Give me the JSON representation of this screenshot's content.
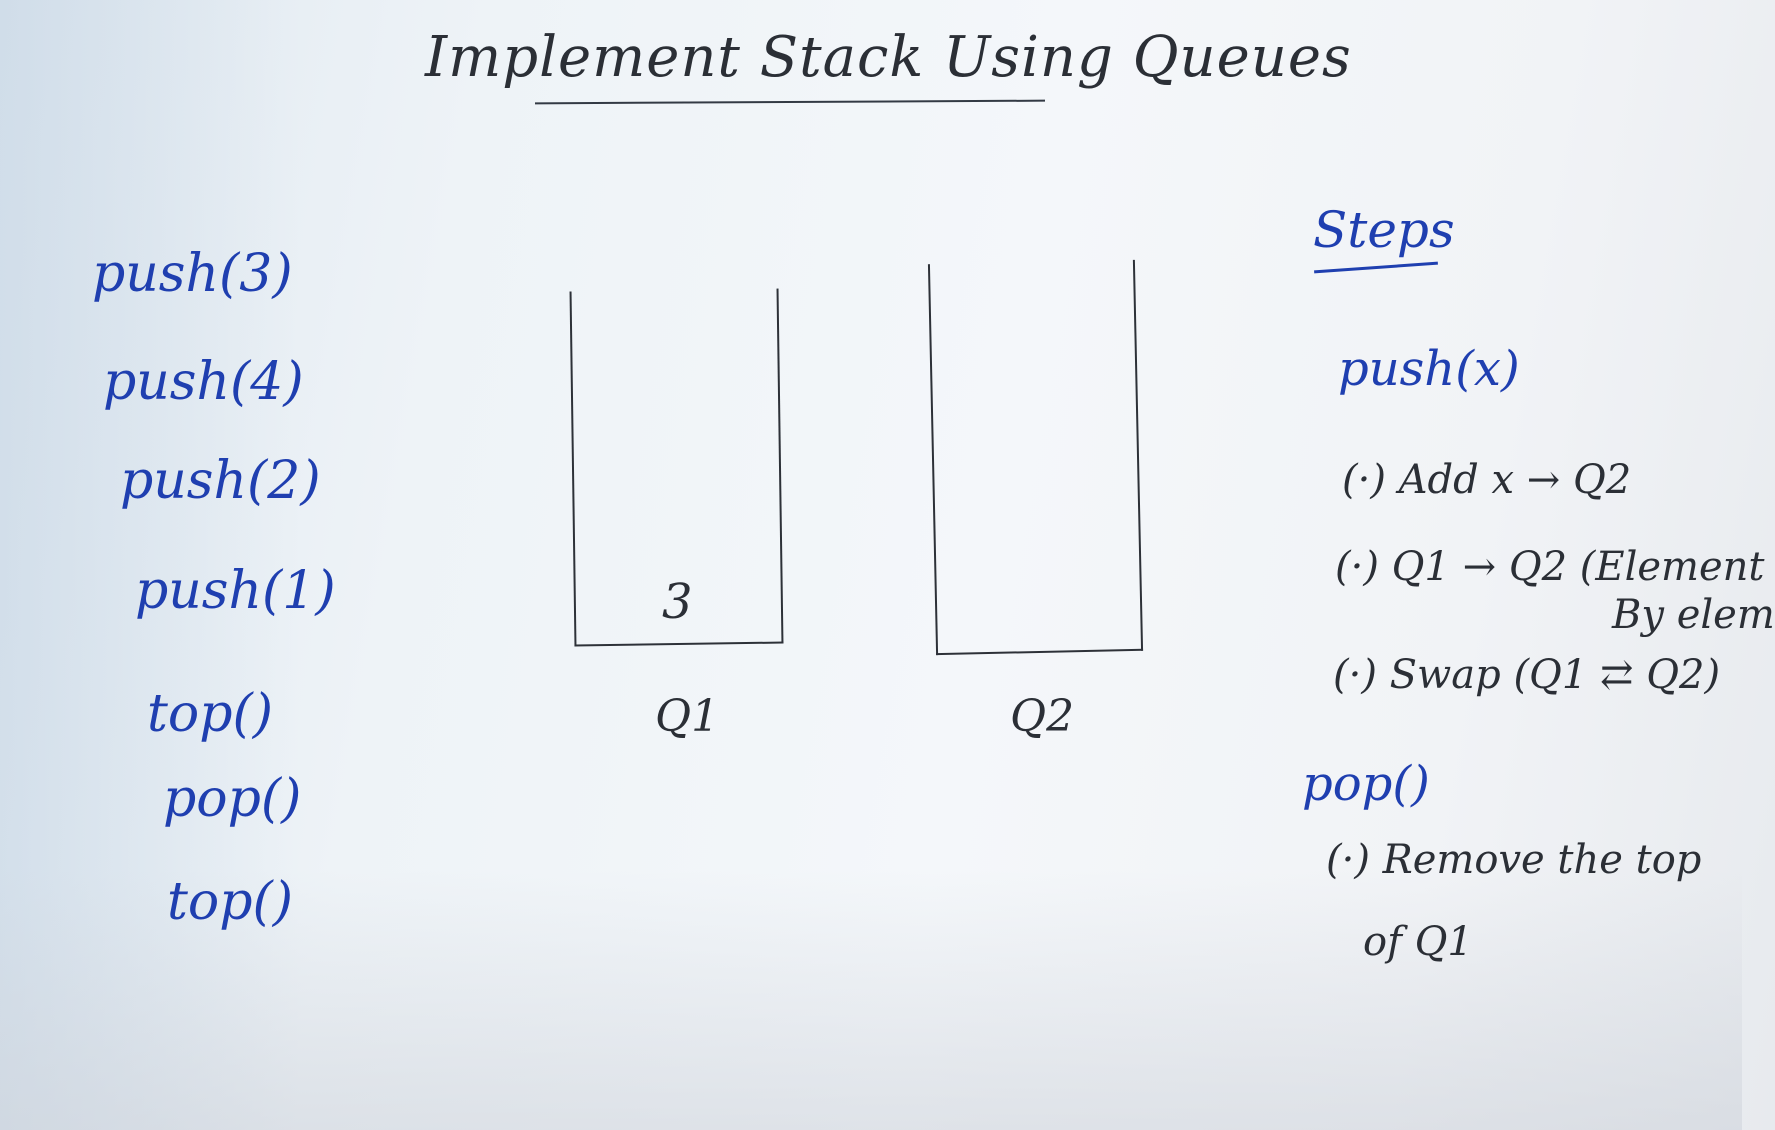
{
  "title": "Implement Stack Using Queues",
  "operations": [
    "push(3)",
    "push(4)",
    "push(2)",
    "push(1)",
    "top()",
    "pop()",
    "top()"
  ],
  "queues": [
    {
      "label": "Q1",
      "items": [
        "3"
      ]
    },
    {
      "label": "Q2",
      "items": []
    }
  ],
  "steps": {
    "title": "Steps",
    "push_label": "push(x)",
    "push_steps": [
      "(·) Add x → Q2",
      "(·) Q1 → Q2 (Element",
      "By elem",
      "(·) Swap (Q1 ⇄ Q2)"
    ],
    "pop_label": "pop()",
    "pop_steps": [
      "(·) Remove the top",
      "of Q1"
    ]
  },
  "colors": {
    "ink_dark": "#2b2f36",
    "ink_blue": "#1f3fb0"
  }
}
